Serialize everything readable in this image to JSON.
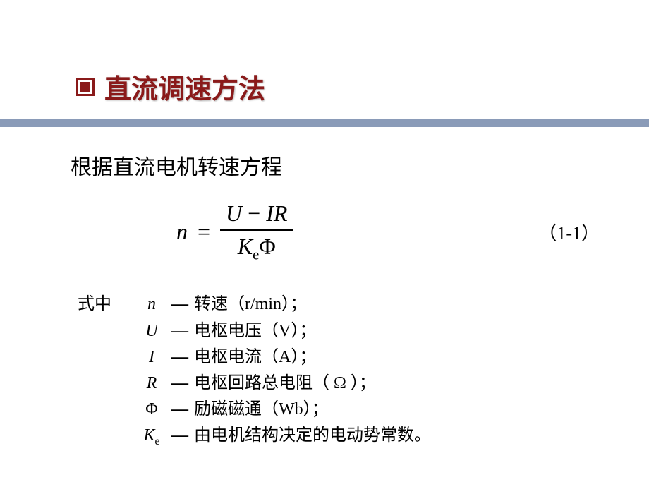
{
  "colors": {
    "title": "#8a1a1a",
    "divider": "#8a9bb8",
    "text": "#000000",
    "background": "#ffffff"
  },
  "title": {
    "text": "直流调速方法"
  },
  "intro": "根据直流电机转速方程",
  "equation": {
    "lhs": "n",
    "eq": "=",
    "numerator_U": "U",
    "numerator_minus": " − ",
    "numerator_IR": "IR",
    "denom_K": "K",
    "denom_K_sub": "e",
    "denom_phi": "Φ",
    "number": "（1-1）"
  },
  "definitions": {
    "prefix": "式中",
    "items": [
      {
        "symbol": "n",
        "italic": true,
        "dash": "—",
        "text": "转速（r/min）；"
      },
      {
        "symbol": "U",
        "italic": true,
        "dash": "—",
        "text": "电枢电压（V）；"
      },
      {
        "symbol": "I",
        "italic": true,
        "dash": "—",
        "text": "电枢电流（A）；"
      },
      {
        "symbol": "R",
        "italic": true,
        "dash": "—",
        "text": "电枢回路总电阻（ Ω ）；"
      },
      {
        "symbol": "Φ",
        "italic": false,
        "dash": "—",
        "text": "励磁磁通（Wb）；"
      },
      {
        "symbol": "K",
        "sub": "e",
        "italic": true,
        "dash": "—",
        "text": "由电机结构决定的电动势常数。"
      }
    ]
  }
}
